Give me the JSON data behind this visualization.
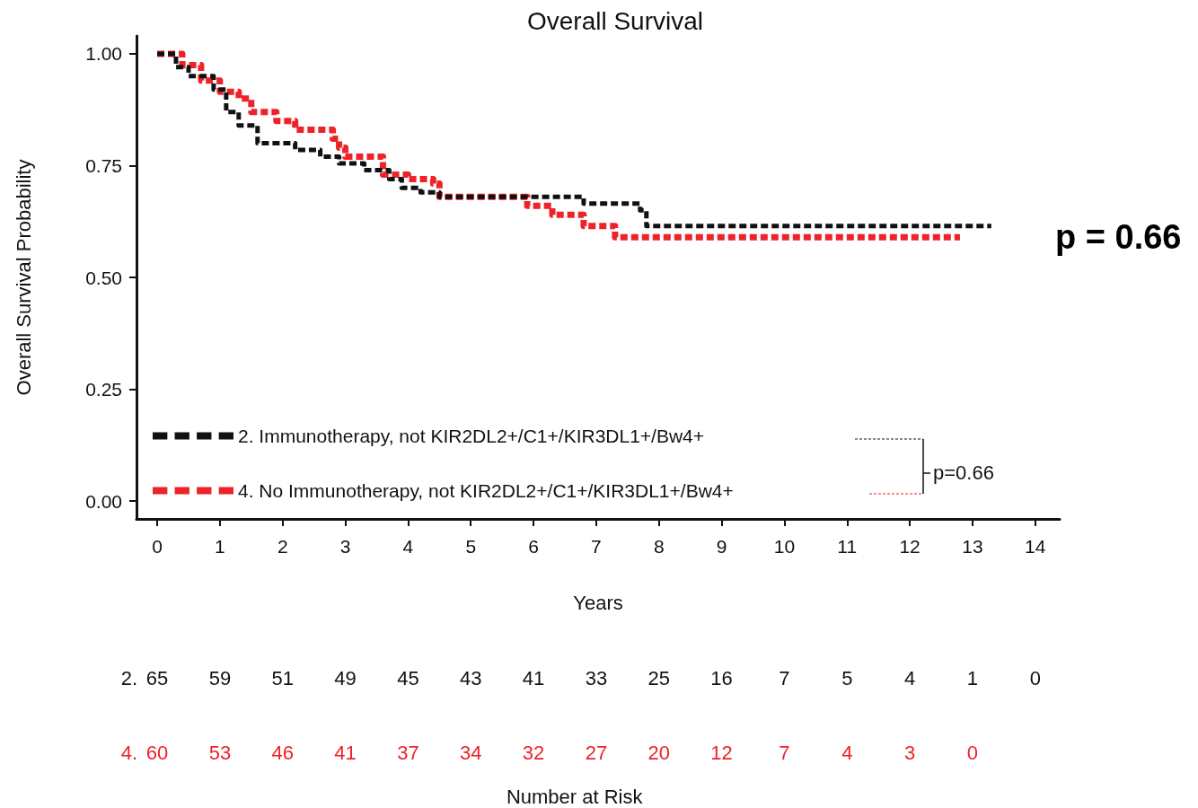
{
  "chart_data": {
    "type": "step",
    "title": "Overall Survival",
    "xlabel": "Years",
    "ylabel": "Overall Survival Probability",
    "x": [
      0,
      0.3,
      0.5,
      0.9,
      1.1,
      1.3,
      1.6,
      2.2,
      2.6,
      2.9,
      3.3,
      3.7,
      3.9,
      4.2,
      4.5,
      6.8,
      7.7,
      7.8,
      13.3
    ],
    "series": [
      {
        "name": "2. Immunotherapy, not KIR2DL2+/C1+/KIR3DL1+/Bw4+",
        "color": "#111111",
        "values": [
          1.0,
          0.97,
          0.95,
          0.92,
          0.87,
          0.84,
          0.8,
          0.785,
          0.77,
          0.755,
          0.74,
          0.72,
          0.7,
          0.69,
          0.68,
          0.665,
          0.65,
          0.615,
          0.615
        ]
      },
      {
        "name": "4. No Immunotherapy, not KIR2DL2+/C1+/KIR3DL1+/Bw4+",
        "color": "#ee2229",
        "x": [
          0,
          0.4,
          0.7,
          1.0,
          1.3,
          1.5,
          1.9,
          2.2,
          2.8,
          2.9,
          3.0,
          3.6,
          4.0,
          4.4,
          4.5,
          5.9,
          6.3,
          6.8,
          7.3,
          12.8
        ],
        "values": [
          1.0,
          0.975,
          0.94,
          0.915,
          0.9,
          0.87,
          0.85,
          0.83,
          0.81,
          0.79,
          0.77,
          0.73,
          0.72,
          0.71,
          0.68,
          0.66,
          0.64,
          0.615,
          0.59,
          0.59
        ]
      }
    ],
    "xlim": [
      -0.33,
      14.39
    ],
    "xticks": [
      0,
      1,
      2,
      3,
      4,
      5,
      6,
      7,
      8,
      9,
      10,
      11,
      12,
      13,
      14
    ],
    "ylim": [
      -0.04,
      1.04
    ],
    "yticks": [
      {
        "value": 0,
        "label": "0.00"
      },
      {
        "value": 0.25,
        "label": "0.25"
      },
      {
        "value": 0.5,
        "label": "0.50"
      },
      {
        "value": 0.75,
        "label": "0.75"
      },
      {
        "value": 1,
        "label": "1.00"
      }
    ],
    "line_style": "dashed",
    "marker": "none",
    "grid": false,
    "legend": "bottom left",
    "annotations": [
      "p = 0.66",
      "p=0.66",
      "Number at Risk",
      "2. 65 59 51 49 45 43 41 33 25 16 7 5 4 1 0",
      "4. 60 53 46 41 37 34 32 27 20 12 7 4 3 0"
    ]
  }
}
